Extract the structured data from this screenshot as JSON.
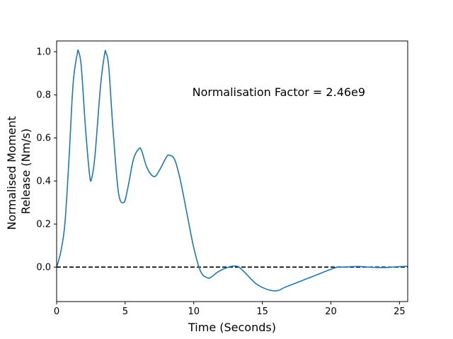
{
  "chart_data": {
    "type": "line",
    "title": "",
    "xlabel": "Time (Seconds)",
    "ylabel_lines": [
      "Normalised Moment",
      "Release (Nm/s)"
    ],
    "xlim": [
      0,
      25.6
    ],
    "ylim": [
      -0.16,
      1.05
    ],
    "xticks": [
      0,
      5,
      10,
      15,
      20,
      25
    ],
    "yticks": [
      0.0,
      0.2,
      0.4,
      0.6,
      0.8,
      1.0
    ],
    "xtick_labels": [
      "0",
      "5",
      "10",
      "15",
      "20",
      "25"
    ],
    "ytick_labels": [
      "0.0",
      "0.2",
      "0.4",
      "0.6",
      "0.8",
      "1.0"
    ],
    "grid": false,
    "annotation": {
      "text": "Normalisation Factor = 2.46e9",
      "x": 16.2,
      "y": 0.81
    },
    "reference_line": {
      "y": 0,
      "style": "dashed",
      "color": "#000000"
    },
    "series": [
      {
        "color": "#1f77b4",
        "x": [
          0,
          0.3,
          0.6,
          0.9,
          1.2,
          1.5,
          1.6,
          1.8,
          2.1,
          2.4,
          2.55,
          2.8,
          3.2,
          3.5,
          3.6,
          3.8,
          4.1,
          4.5,
          4.9,
          5.2,
          5.6,
          6.0,
          6.2,
          6.6,
          7.1,
          7.5,
          8.0,
          8.2,
          8.6,
          9.0,
          9.5,
          10.0,
          10.5,
          11.0,
          11.3,
          11.7,
          12.2,
          12.7,
          13.0,
          13.3,
          13.8,
          14.5,
          15.2,
          15.8,
          16.2,
          16.6,
          17.2,
          18.0,
          19.0,
          20.0,
          20.5,
          21.0,
          21.5,
          22.0,
          22.5,
          23.0,
          23.5,
          24.0,
          24.5,
          25.0,
          25.6
        ],
        "y": [
          0.0,
          0.07,
          0.2,
          0.5,
          0.85,
          0.99,
          1.0,
          0.93,
          0.65,
          0.43,
          0.41,
          0.52,
          0.84,
          0.99,
          0.995,
          0.93,
          0.65,
          0.35,
          0.3,
          0.37,
          0.5,
          0.55,
          0.54,
          0.46,
          0.42,
          0.45,
          0.51,
          0.52,
          0.5,
          0.41,
          0.25,
          0.09,
          -0.02,
          -0.05,
          -0.045,
          -0.025,
          -0.008,
          0.003,
          0.005,
          0.0,
          -0.03,
          -0.075,
          -0.1,
          -0.11,
          -0.108,
          -0.095,
          -0.08,
          -0.06,
          -0.035,
          -0.01,
          0.0,
          0.0,
          0.002,
          0.003,
          0.001,
          -0.001,
          -0.002,
          -0.002,
          0.0,
          0.002,
          0.004
        ]
      }
    ]
  }
}
